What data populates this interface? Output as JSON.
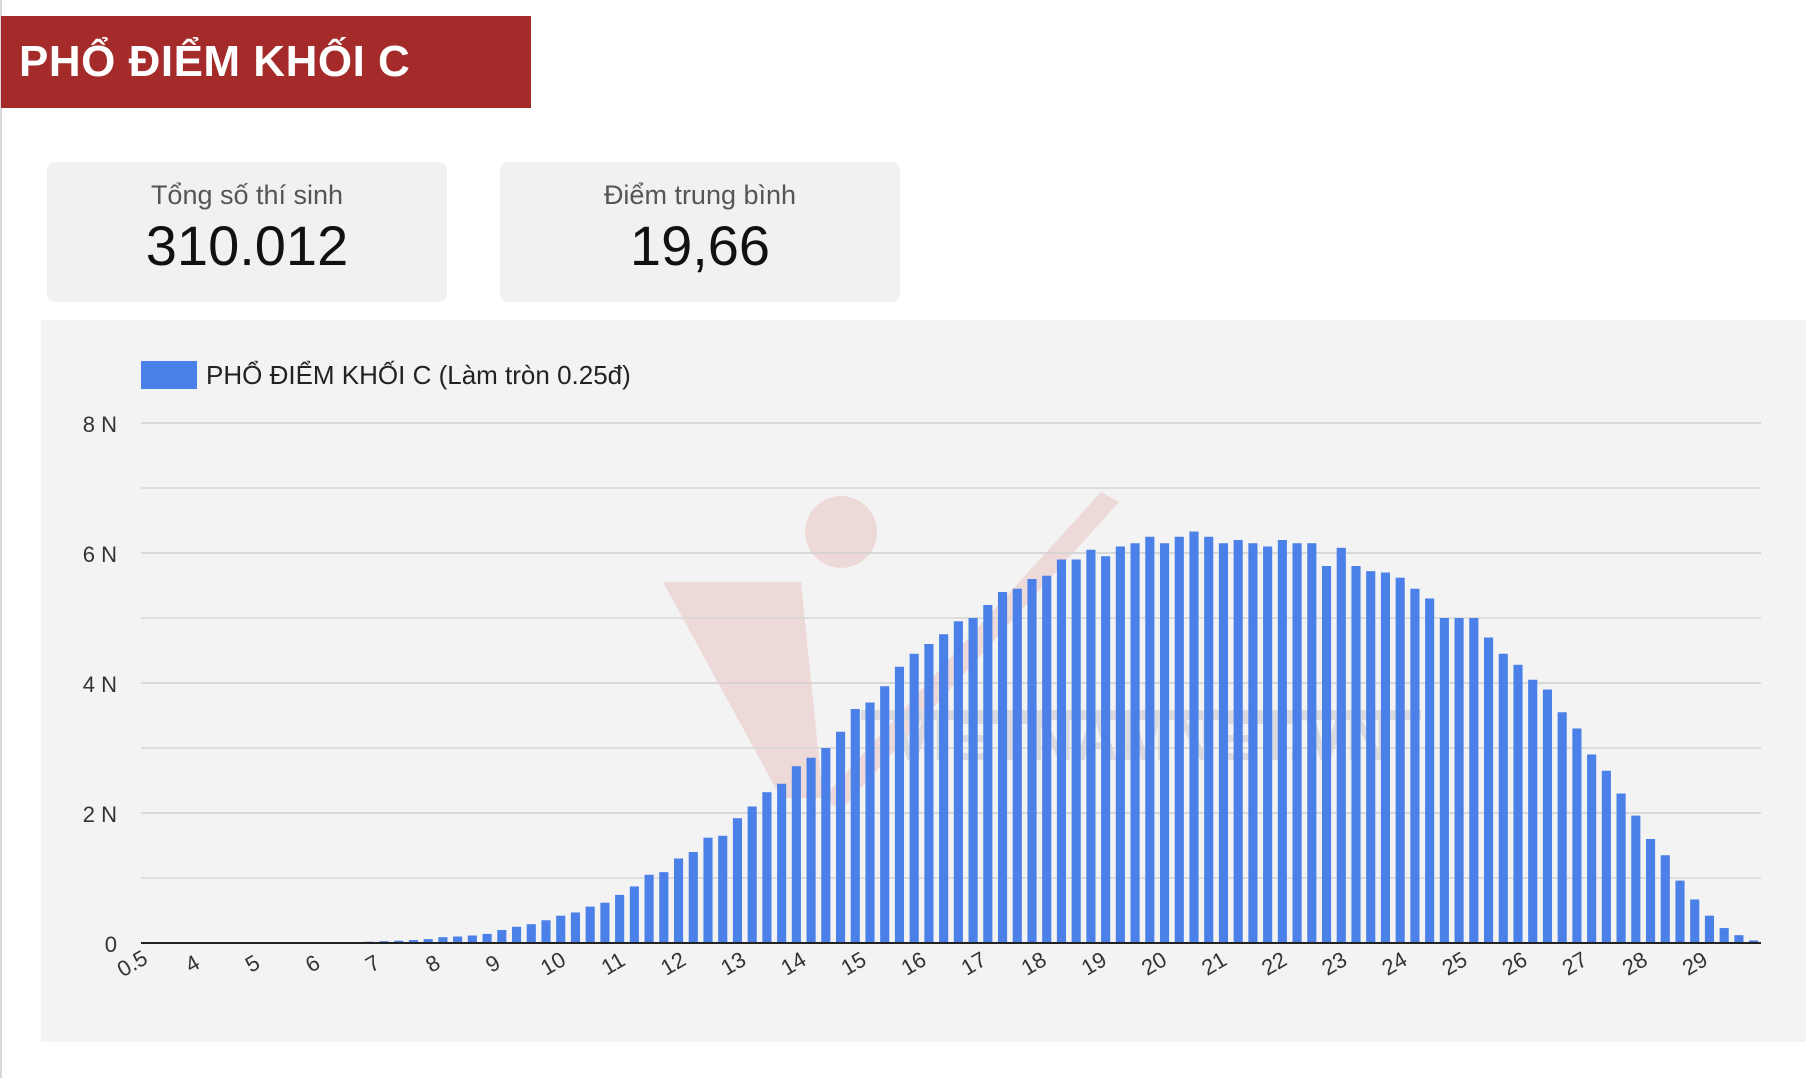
{
  "header": {
    "title": "PHỔ ĐIỂM KHỐI C"
  },
  "stats": [
    {
      "label": "Tổng số thí sinh",
      "value": "310.012"
    },
    {
      "label": "Điểm trung bình",
      "value": "19,66"
    }
  ],
  "colors": {
    "banner": "#a52a2a",
    "bar": "#4a80e8"
  },
  "chart_data": {
    "type": "bar",
    "legend": {
      "label": "PHỔ ĐIỂM KHỐI C (Làm tròn 0.25đ)",
      "position": "top-left"
    },
    "y_ticks": [
      {
        "value": 0,
        "label": "0"
      },
      {
        "value": 2000,
        "label": "2 N"
      },
      {
        "value": 4000,
        "label": "4 N"
      },
      {
        "value": 6000,
        "label": "6 N"
      },
      {
        "value": 8000,
        "label": "8 N"
      }
    ],
    "ylim": [
      0,
      8000
    ],
    "x_ticks": [
      "0.5",
      "4",
      "5",
      "6",
      "7",
      "8",
      "9",
      "10",
      "11",
      "12",
      "13",
      "14",
      "15",
      "16",
      "17",
      "18",
      "19",
      "20",
      "21",
      "22",
      "23",
      "24",
      "25",
      "26",
      "27",
      "28",
      "29"
    ],
    "grid": true,
    "series": [
      {
        "values": [
          0,
          0,
          0,
          0,
          0,
          0,
          0,
          0,
          0,
          0,
          0,
          0,
          0,
          0,
          15,
          20,
          28,
          35,
          45,
          60,
          90,
          100,
          115,
          140,
          200,
          250,
          290,
          350,
          420,
          470,
          560,
          620,
          740,
          870,
          1050,
          1090,
          1300,
          1400,
          1620,
          1650,
          1920,
          2100,
          2320,
          2450,
          2720,
          2850,
          3000,
          3250,
          3600,
          3700,
          3950,
          4250,
          4450,
          4600,
          4750,
          4950,
          5000,
          5200,
          5400,
          5450,
          5600,
          5650,
          5900,
          5900,
          6050,
          5950,
          6100,
          6150,
          6250,
          6150,
          6250,
          6330,
          6250,
          6150,
          6200,
          6150,
          6100,
          6200,
          6150,
          6150,
          5800,
          6080,
          5800,
          5720,
          5700,
          5620,
          5450,
          5300,
          5000,
          5000,
          5000,
          4700,
          4450,
          4280,
          4050,
          3900,
          3550,
          3300,
          2900,
          2650,
          2300,
          1960,
          1600,
          1350,
          960,
          670,
          420,
          230,
          120,
          40
        ]
      }
    ]
  }
}
